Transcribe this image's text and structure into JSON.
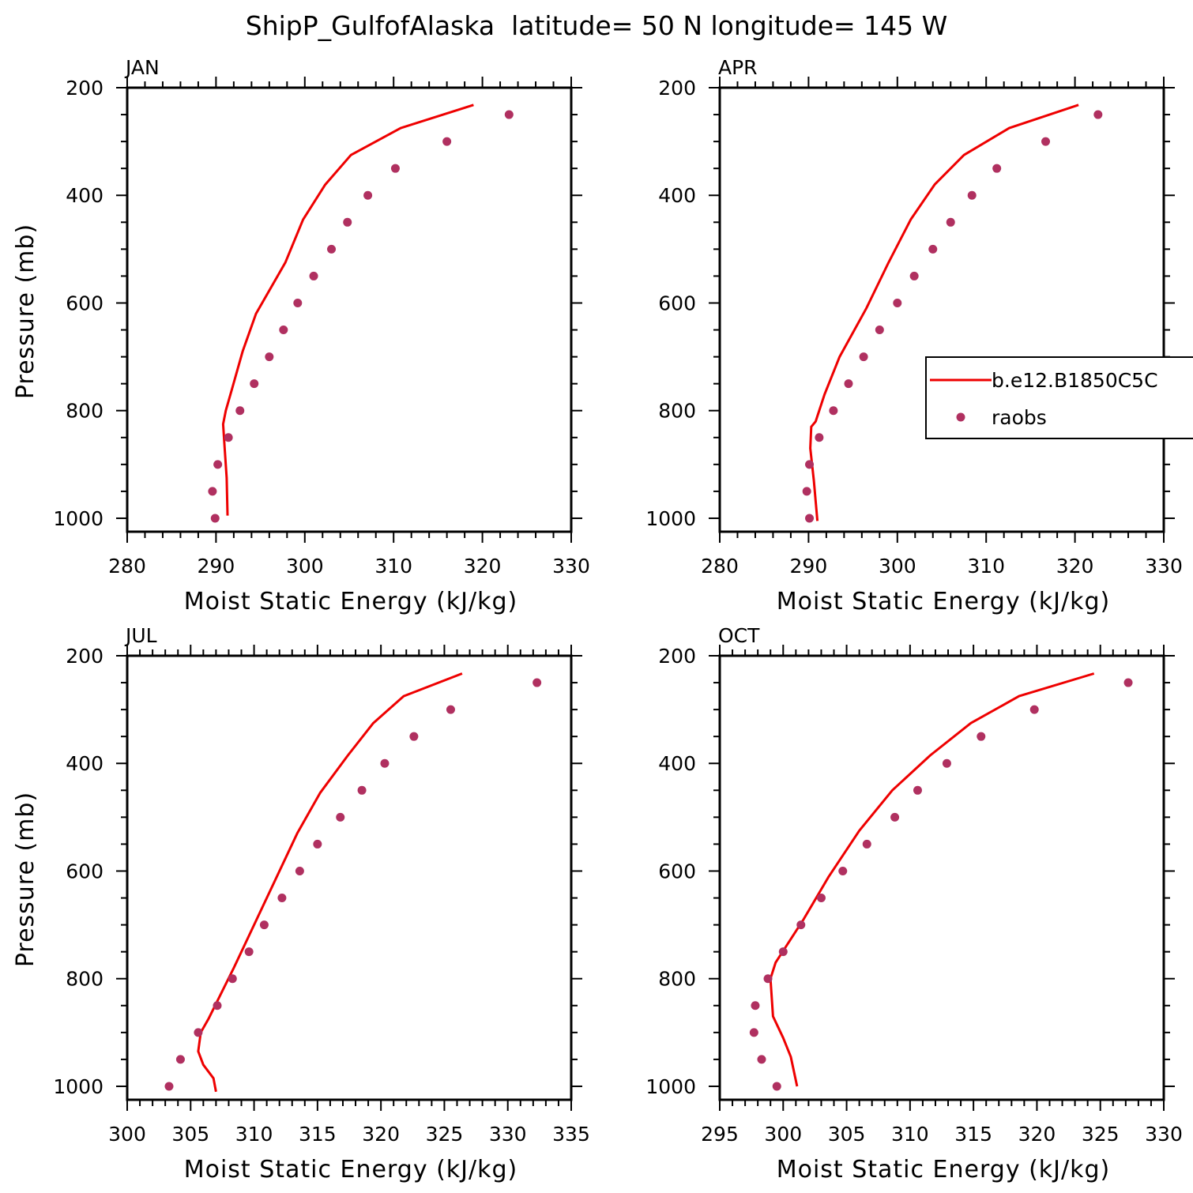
{
  "figure": {
    "title": "ShipP_GulfofAlaska  latitude= 50 N longitude= 145 W"
  },
  "colors": {
    "model_line": "#ee0000",
    "obs_marker": "#b03060",
    "frame": "#000000"
  },
  "legend": {
    "position": "right of APR panel",
    "entries": [
      "b.e12.B1850C5C",
      "raobs"
    ]
  },
  "chart_data": [
    {
      "type": "line",
      "panel_title": "JAN",
      "xlabel": "Moist Static Energy (kJ/kg)",
      "ylabel": "Pressure (mb)",
      "xlim": [
        280,
        330
      ],
      "xticks": [
        280,
        290,
        300,
        310,
        320,
        330
      ],
      "ylim": [
        1025,
        200
      ],
      "yticks": [
        200,
        400,
        600,
        800,
        1000
      ],
      "series": [
        {
          "name": "b.e12.B1850C5C",
          "style": "line",
          "points": [
            [
              319.0,
              232
            ],
            [
              310.8,
              275
            ],
            [
              305.2,
              325
            ],
            [
              302.3,
              380
            ],
            [
              299.8,
              445
            ],
            [
              297.8,
              525
            ],
            [
              294.5,
              620
            ],
            [
              293.0,
              690
            ],
            [
              291.8,
              760
            ],
            [
              291.1,
              800
            ],
            [
              290.8,
              825
            ],
            [
              291.0,
              875
            ],
            [
              291.2,
              925
            ],
            [
              291.3,
              995
            ]
          ]
        },
        {
          "name": "raobs",
          "style": "marker",
          "points": [
            [
              323.0,
              250
            ],
            [
              316.0,
              300
            ],
            [
              310.2,
              350
            ],
            [
              307.1,
              400
            ],
            [
              304.8,
              450
            ],
            [
              303.0,
              500
            ],
            [
              301.0,
              550
            ],
            [
              299.2,
              600
            ],
            [
              297.6,
              650
            ],
            [
              296.0,
              700
            ],
            [
              294.3,
              750
            ],
            [
              292.7,
              800
            ],
            [
              291.4,
              850
            ],
            [
              290.2,
              900
            ],
            [
              289.6,
              950
            ],
            [
              289.9,
              1000
            ]
          ]
        }
      ]
    },
    {
      "type": "line",
      "panel_title": "APR",
      "xlabel": "Moist Static Energy (kJ/kg)",
      "ylabel": "",
      "xlim": [
        280,
        330
      ],
      "xticks": [
        280,
        290,
        300,
        310,
        320,
        330
      ],
      "ylim": [
        1025,
        200
      ],
      "yticks": [
        200,
        400,
        600,
        800,
        1000
      ],
      "series": [
        {
          "name": "b.e12.B1850C5C",
          "style": "line",
          "points": [
            [
              320.4,
              232
            ],
            [
              312.6,
              275
            ],
            [
              307.5,
              325
            ],
            [
              304.2,
              380
            ],
            [
              301.5,
              445
            ],
            [
              299.0,
              525
            ],
            [
              296.5,
              610
            ],
            [
              293.5,
              700
            ],
            [
              291.8,
              770
            ],
            [
              290.8,
              820
            ],
            [
              290.3,
              830
            ],
            [
              290.2,
              870
            ],
            [
              290.6,
              930
            ],
            [
              291.0,
              1005
            ]
          ]
        },
        {
          "name": "raobs",
          "style": "marker",
          "points": [
            [
              322.6,
              250
            ],
            [
              316.7,
              300
            ],
            [
              311.2,
              350
            ],
            [
              308.4,
              400
            ],
            [
              306.0,
              450
            ],
            [
              304.0,
              500
            ],
            [
              301.9,
              550
            ],
            [
              300.0,
              600
            ],
            [
              298.0,
              650
            ],
            [
              296.2,
              700
            ],
            [
              294.5,
              750
            ],
            [
              292.8,
              800
            ],
            [
              291.2,
              850
            ],
            [
              290.1,
              900
            ],
            [
              289.8,
              950
            ],
            [
              290.1,
              1000
            ]
          ]
        }
      ]
    },
    {
      "type": "line",
      "panel_title": "JUL",
      "xlabel": "Moist Static Energy (kJ/kg)",
      "ylabel": "Pressure (mb)",
      "xlim": [
        300,
        335
      ],
      "xticks": [
        300,
        305,
        310,
        315,
        320,
        325,
        330,
        335
      ],
      "ylim": [
        1025,
        200
      ],
      "yticks": [
        200,
        400,
        600,
        800,
        1000
      ],
      "series": [
        {
          "name": "b.e12.B1850C5C",
          "style": "line",
          "points": [
            [
              326.4,
              233
            ],
            [
              321.8,
              275
            ],
            [
              319.4,
              325
            ],
            [
              317.4,
              385
            ],
            [
              315.2,
              455
            ],
            [
              313.4,
              530
            ],
            [
              311.6,
              620
            ],
            [
              310.0,
              700
            ],
            [
              308.4,
              780
            ],
            [
              306.4,
              875
            ],
            [
              305.8,
              900
            ],
            [
              305.6,
              935
            ],
            [
              306.0,
              960
            ],
            [
              306.8,
              985
            ],
            [
              307.0,
              1010
            ]
          ]
        },
        {
          "name": "raobs",
          "style": "marker",
          "points": [
            [
              332.3,
              250
            ],
            [
              325.5,
              300
            ],
            [
              322.6,
              350
            ],
            [
              320.3,
              400
            ],
            [
              318.5,
              450
            ],
            [
              316.8,
              500
            ],
            [
              315.0,
              550
            ],
            [
              313.6,
              600
            ],
            [
              312.2,
              650
            ],
            [
              310.8,
              700
            ],
            [
              309.6,
              750
            ],
            [
              308.3,
              800
            ],
            [
              307.1,
              850
            ],
            [
              305.6,
              900
            ],
            [
              304.2,
              950
            ],
            [
              303.3,
              1000
            ]
          ]
        }
      ]
    },
    {
      "type": "line",
      "panel_title": "OCT",
      "xlabel": "Moist Static Energy (kJ/kg)",
      "ylabel": "",
      "xlim": [
        295,
        330
      ],
      "xticks": [
        295,
        300,
        305,
        310,
        315,
        320,
        325,
        330
      ],
      "ylim": [
        1025,
        200
      ],
      "yticks": [
        200,
        400,
        600,
        800,
        1000
      ],
      "series": [
        {
          "name": "b.e12.B1850C5C",
          "style": "line",
          "points": [
            [
              324.5,
              233
            ],
            [
              318.6,
              275
            ],
            [
              314.8,
              325
            ],
            [
              311.6,
              385
            ],
            [
              308.6,
              450
            ],
            [
              306.0,
              525
            ],
            [
              303.6,
              610
            ],
            [
              301.6,
              690
            ],
            [
              299.4,
              770
            ],
            [
              299.0,
              800
            ],
            [
              299.2,
              870
            ],
            [
              300.0,
              910
            ],
            [
              300.6,
              945
            ],
            [
              301.1,
              1000
            ]
          ]
        },
        {
          "name": "raobs",
          "style": "marker",
          "points": [
            [
              327.2,
              250
            ],
            [
              319.8,
              300
            ],
            [
              315.6,
              350
            ],
            [
              312.9,
              400
            ],
            [
              310.6,
              450
            ],
            [
              308.8,
              500
            ],
            [
              306.6,
              550
            ],
            [
              304.7,
              600
            ],
            [
              303.0,
              650
            ],
            [
              301.4,
              700
            ],
            [
              300.0,
              750
            ],
            [
              298.8,
              800
            ],
            [
              297.8,
              850
            ],
            [
              297.7,
              900
            ],
            [
              298.3,
              950
            ],
            [
              299.5,
              1000
            ]
          ]
        }
      ]
    }
  ]
}
